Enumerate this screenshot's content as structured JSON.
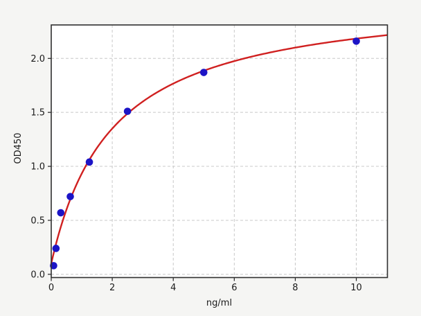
{
  "figure": {
    "background_color": "#f5f5f3",
    "plot_background_color": "#ffffff",
    "frame_color": "#2f2f2f",
    "grid_color": "#c8c8c8",
    "tick_color": "#222222",
    "text_color": "#1a1a1a"
  },
  "chart_data": {
    "type": "scatter",
    "title": "",
    "xlabel": "ng/ml",
    "ylabel": "OD450",
    "xlim": [
      0,
      11.02
    ],
    "ylim": [
      -0.03,
      2.31
    ],
    "grid": true,
    "legend_position": "none",
    "x_ticks": {
      "values": [
        0,
        2,
        4,
        6,
        8,
        10
      ],
      "labels": [
        "0",
        "2",
        "4",
        "6",
        "8",
        "10"
      ]
    },
    "y_ticks": {
      "values": [
        0.0,
        0.5,
        1.0,
        1.5,
        2.0
      ],
      "labels": [
        "0.0",
        "0.5",
        "1.0",
        "1.5",
        "2.0"
      ]
    },
    "series": [
      {
        "name": "standard-points",
        "type": "scatter",
        "marker": "circle",
        "marker_radius": 5.3,
        "color": "#1c14c6",
        "points": [
          {
            "x": 0.078,
            "y": 0.08
          },
          {
            "x": 0.156,
            "y": 0.24
          },
          {
            "x": 0.3125,
            "y": 0.57
          },
          {
            "x": 0.625,
            "y": 0.72
          },
          {
            "x": 1.25,
            "y": 1.04
          },
          {
            "x": 2.5,
            "y": 1.51
          },
          {
            "x": 5,
            "y": 1.87
          },
          {
            "x": 10,
            "y": 2.16
          }
        ]
      },
      {
        "name": "fitted-curve",
        "type": "line",
        "color": "#d02020",
        "line_width": 2.4,
        "fit_model": {
          "type": "4PL",
          "A": 0.1,
          "B": 1.0,
          "C": 2.0,
          "D": 2.6
        },
        "x_range": [
          0,
          11.02
        ]
      }
    ]
  }
}
